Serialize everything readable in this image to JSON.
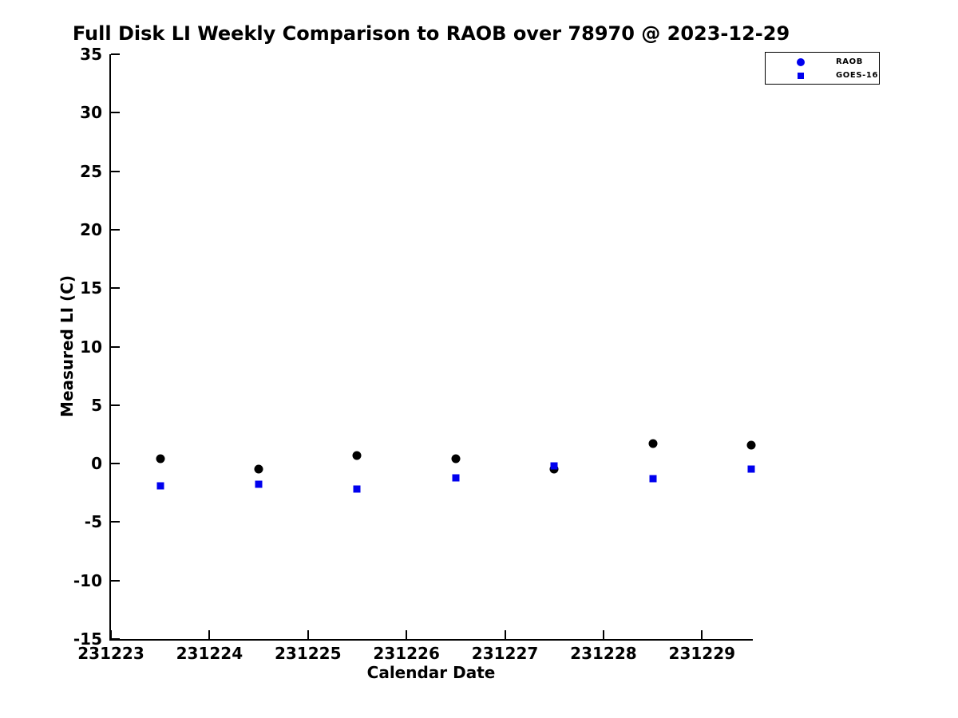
{
  "chart_data": {
    "type": "scatter",
    "title": "Full Disk LI Weekly Comparison to RAOB over 78970 @ 2023-12-29",
    "xlabel": "Calendar Date",
    "ylabel": "Measured LI (C)",
    "xlim": [
      231223,
      231229.5
    ],
    "ylim": [
      -15,
      35
    ],
    "xticks": [
      231223,
      231224,
      231225,
      231226,
      231227,
      231228,
      231229
    ],
    "yticks": [
      -15,
      -10,
      -5,
      0,
      5,
      10,
      15,
      20,
      25,
      30,
      35
    ],
    "grid": false,
    "axis_color": "#000000",
    "background_color": "#ffffff",
    "series": [
      {
        "name": "RAOB",
        "marker": "circle",
        "color": "#000000",
        "x": [
          231223.5,
          231224.5,
          231225.5,
          231226.5,
          231227.5,
          231228.5,
          231229.5
        ],
        "y": [
          0.4,
          -0.5,
          0.7,
          0.4,
          -0.5,
          1.7,
          1.6
        ]
      },
      {
        "name": "GOES-16",
        "marker": "square",
        "color": "#0000ee",
        "x": [
          231223.5,
          231224.5,
          231225.5,
          231226.5,
          231227.5,
          231228.5,
          231229.5
        ],
        "y": [
          -1.9,
          -1.8,
          -2.2,
          -1.2,
          -0.2,
          -1.3,
          -0.5
        ]
      }
    ],
    "legend": {
      "position": "top-right",
      "items": [
        {
          "label": "RAOB",
          "marker": "circle",
          "color": "#0000ee"
        },
        {
          "label": "GOES-16",
          "marker": "square",
          "color": "#0000ee"
        }
      ]
    }
  }
}
